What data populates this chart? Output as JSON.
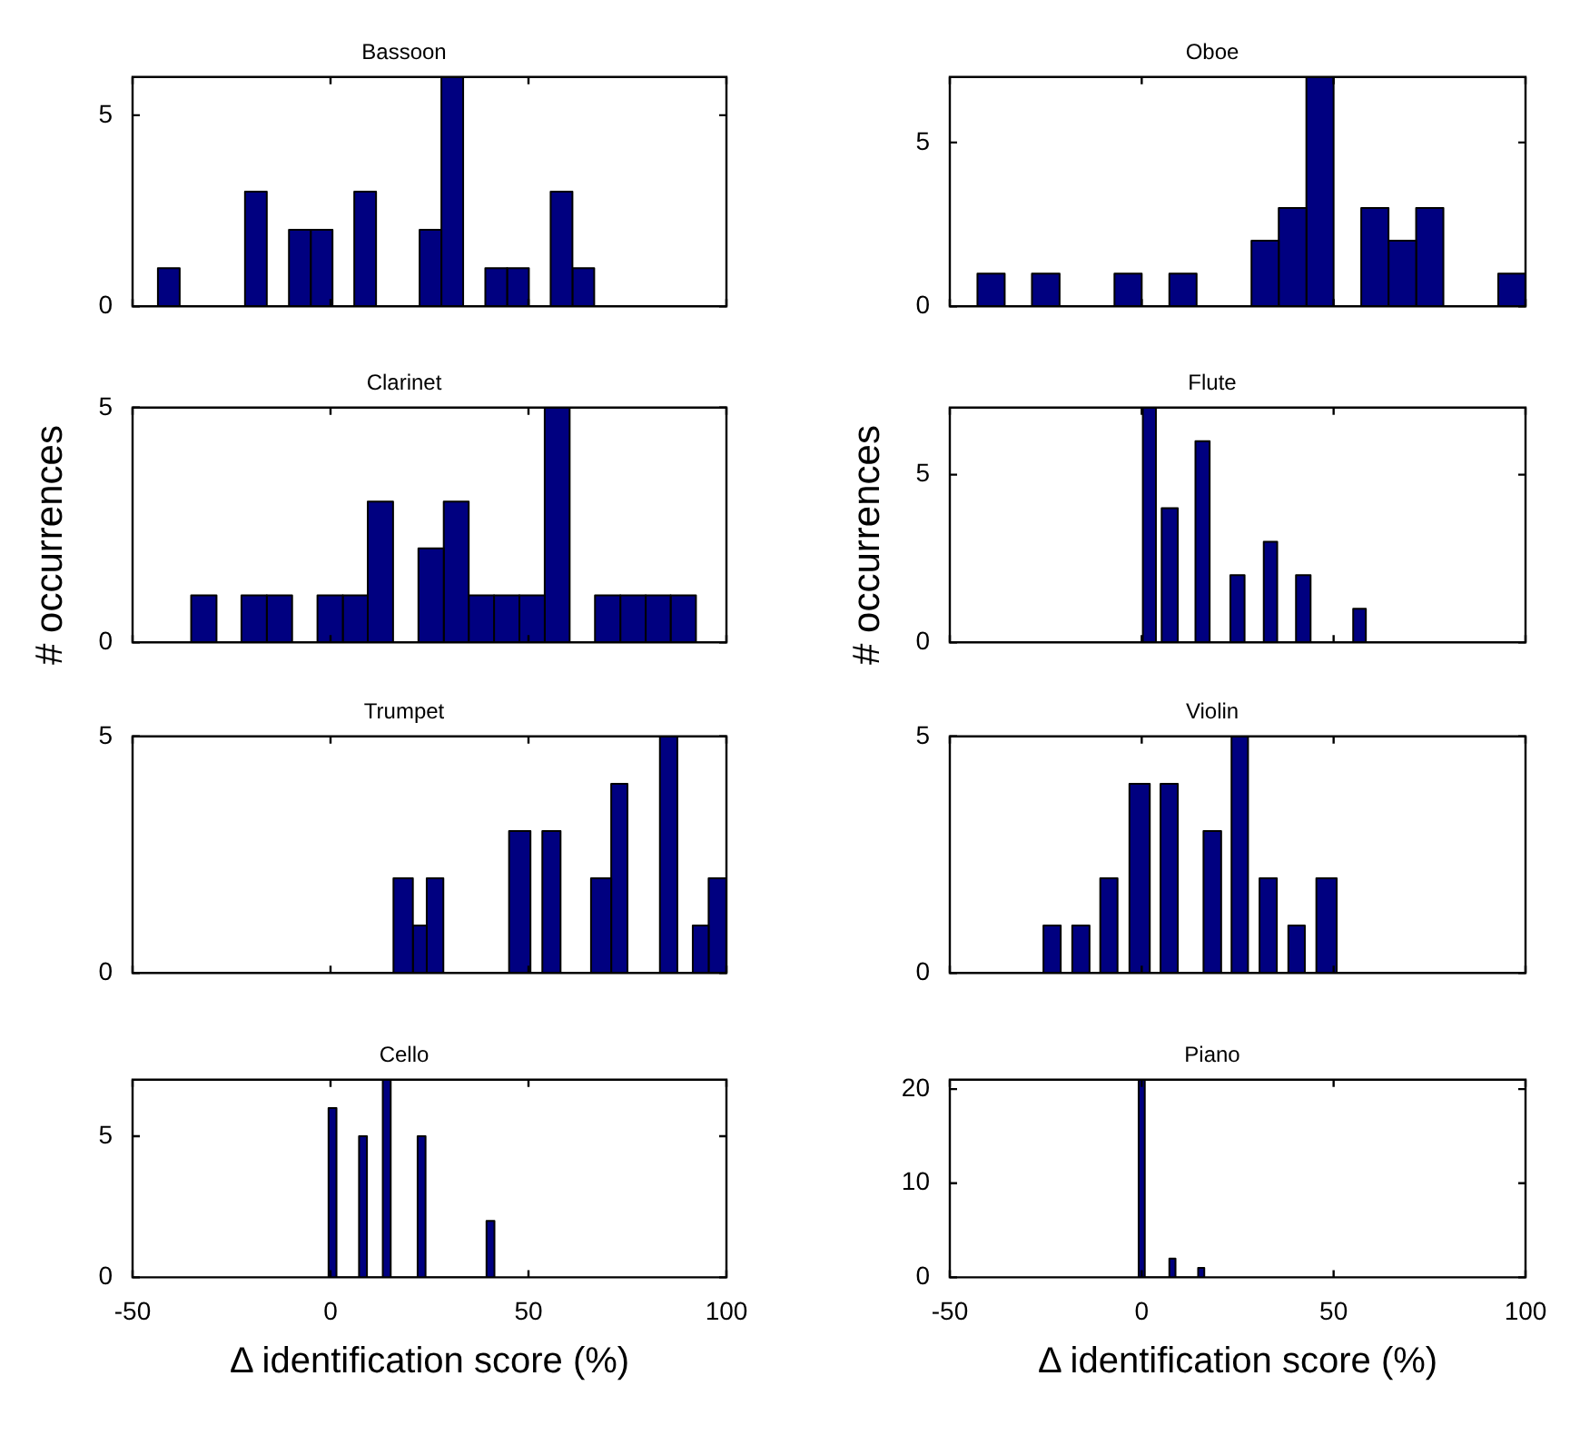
{
  "chart_data": [
    {
      "type": "histogram",
      "title": "Bassoon",
      "bins": [
        -43.6,
        -38.1,
        -32.6,
        -27.1,
        -21.6,
        -16.1,
        -10.5,
        -5.0,
        0.5,
        6.0,
        11.5,
        17.0,
        22.5,
        28.0,
        33.5,
        39.1,
        44.6,
        50.1,
        55.6,
        61.1,
        66.6
      ],
      "values": [
        1,
        0,
        0,
        0,
        3,
        0,
        2,
        2,
        0,
        3,
        0,
        0,
        2,
        6,
        0,
        1,
        1,
        0,
        3,
        1
      ],
      "color": "#000080",
      "xlim": [
        -50,
        100
      ],
      "xticks": [
        -50,
        0,
        50,
        100
      ],
      "ylim": [
        0,
        6
      ],
      "yticks": [
        0,
        5
      ],
      "tick_labels": "y"
    },
    {
      "type": "histogram",
      "title": "Oboe",
      "bins": [
        -42.8,
        -35.7,
        -28.6,
        -21.4,
        -14.2,
        -7.1,
        0.0,
        7.2,
        14.3,
        21.5,
        28.6,
        35.7,
        42.9,
        50.0,
        57.2,
        64.3,
        71.5,
        78.6,
        85.8,
        92.9,
        100
      ],
      "values": [
        1,
        0,
        1,
        0,
        0,
        1,
        0,
        1,
        0,
        0,
        2,
        3,
        7,
        0,
        3,
        2,
        3,
        0,
        0,
        1
      ],
      "color": "#000080",
      "xlim": [
        -50,
        100
      ],
      "xticks": [
        -50,
        0,
        50,
        100
      ],
      "ylim": [
        0,
        7
      ],
      "yticks": [
        0,
        5
      ],
      "tick_labels": "y"
    },
    {
      "type": "histogram",
      "title": "Clarinet",
      "ylabel": "# occurrences",
      "bins": [
        -35.2,
        -28.8,
        -22.5,
        -16.1,
        -9.7,
        -3.3,
        3.1,
        9.4,
        15.8,
        22.2,
        28.6,
        34.9,
        41.3,
        47.7,
        54.1,
        60.4,
        66.8,
        73.2,
        79.6,
        85.9,
        92.3
      ],
      "values": [
        1,
        0,
        1,
        1,
        0,
        1,
        1,
        3,
        0,
        2,
        3,
        1,
        1,
        1,
        5,
        0,
        1,
        1,
        1,
        1
      ],
      "color": "#000080",
      "xlim": [
        -50,
        100
      ],
      "xticks": [
        -50,
        0,
        50,
        100
      ],
      "ylim": [
        0,
        5
      ],
      "yticks": [
        0,
        5
      ],
      "tick_labels": "y"
    },
    {
      "type": "histogram",
      "title": "Flute",
      "ylabel": "# occurrences",
      "bins": [
        0.3,
        3.7,
        5.2,
        9.4,
        14,
        17.7,
        23.1,
        26.8,
        31.8,
        35.3,
        40.2,
        44,
        55.1,
        58.4
      ],
      "values": [
        7,
        0,
        4,
        0,
        6,
        0,
        2,
        0,
        3,
        0,
        2,
        0,
        1
      ],
      "color": "#000080",
      "xlim": [
        -50,
        100
      ],
      "xticks": [
        -50,
        0,
        50,
        100
      ],
      "ylim": [
        0,
        7
      ],
      "yticks": [
        0,
        5
      ],
      "tick_labels": "y"
    },
    {
      "type": "histogram",
      "title": "Trumpet",
      "bins": [
        15.9,
        20.8,
        24.3,
        28.5,
        45.1,
        50.5,
        53.5,
        58.1,
        65.8,
        70.9,
        75,
        83.2,
        87.6,
        91.5,
        95.5,
        100
      ],
      "values": [
        2,
        1,
        2,
        0,
        3,
        0,
        3,
        0,
        2,
        4,
        0,
        5,
        0,
        1,
        2
      ],
      "color": "#000080",
      "xlim": [
        -50,
        100
      ],
      "xticks": [
        -50,
        0,
        50,
        100
      ],
      "ylim": [
        0,
        5
      ],
      "yticks": [
        0,
        5
      ],
      "tick_labels": "y"
    },
    {
      "type": "histogram",
      "title": "Violin",
      "bins": [
        -25.6,
        -21.1,
        -18.1,
        -13.6,
        -10.8,
        -6.3,
        -3.2,
        2.1,
        4.9,
        9.4,
        16.1,
        20.7,
        23.4,
        27.7,
        30.7,
        35.2,
        38.2,
        42.5,
        45.5,
        50.8
      ],
      "values": [
        1,
        0,
        1,
        0,
        2,
        0,
        4,
        0,
        4,
        0,
        3,
        0,
        5,
        0,
        2,
        0,
        1,
        0,
        2
      ],
      "color": "#000080",
      "xlim": [
        -50,
        100
      ],
      "xticks": [
        -50,
        0,
        50,
        100
      ],
      "ylim": [
        0,
        5
      ],
      "yticks": [
        0,
        5
      ],
      "tick_labels": "y"
    },
    {
      "type": "histogram",
      "title": "Cello",
      "xlabel": "Δ identification score (%)",
      "bins": [
        -0.5,
        1.5,
        7.2,
        9.2,
        13.2,
        15.2,
        22,
        24,
        39.4,
        41.4
      ],
      "values": [
        6,
        0,
        5,
        0,
        7,
        0,
        5,
        0,
        2
      ],
      "color": "#000080",
      "xlim": [
        -50,
        100
      ],
      "xticks": [
        -50,
        0,
        50,
        100
      ],
      "ylim": [
        0,
        7
      ],
      "yticks": [
        0,
        5
      ]
    },
    {
      "type": "histogram",
      "title": "Piano",
      "xlabel": "Δ identification score (%)",
      "bins": [
        -0.8,
        0.8,
        7.2,
        8.8,
        14.7,
        16.3
      ],
      "values": [
        21,
        0,
        2,
        0,
        1
      ],
      "color": "#000080",
      "xlim": [
        -50,
        100
      ],
      "xticks": [
        -50,
        0,
        50,
        100
      ],
      "ylim": [
        0,
        21
      ],
      "yticks": [
        0,
        10,
        20
      ]
    }
  ]
}
